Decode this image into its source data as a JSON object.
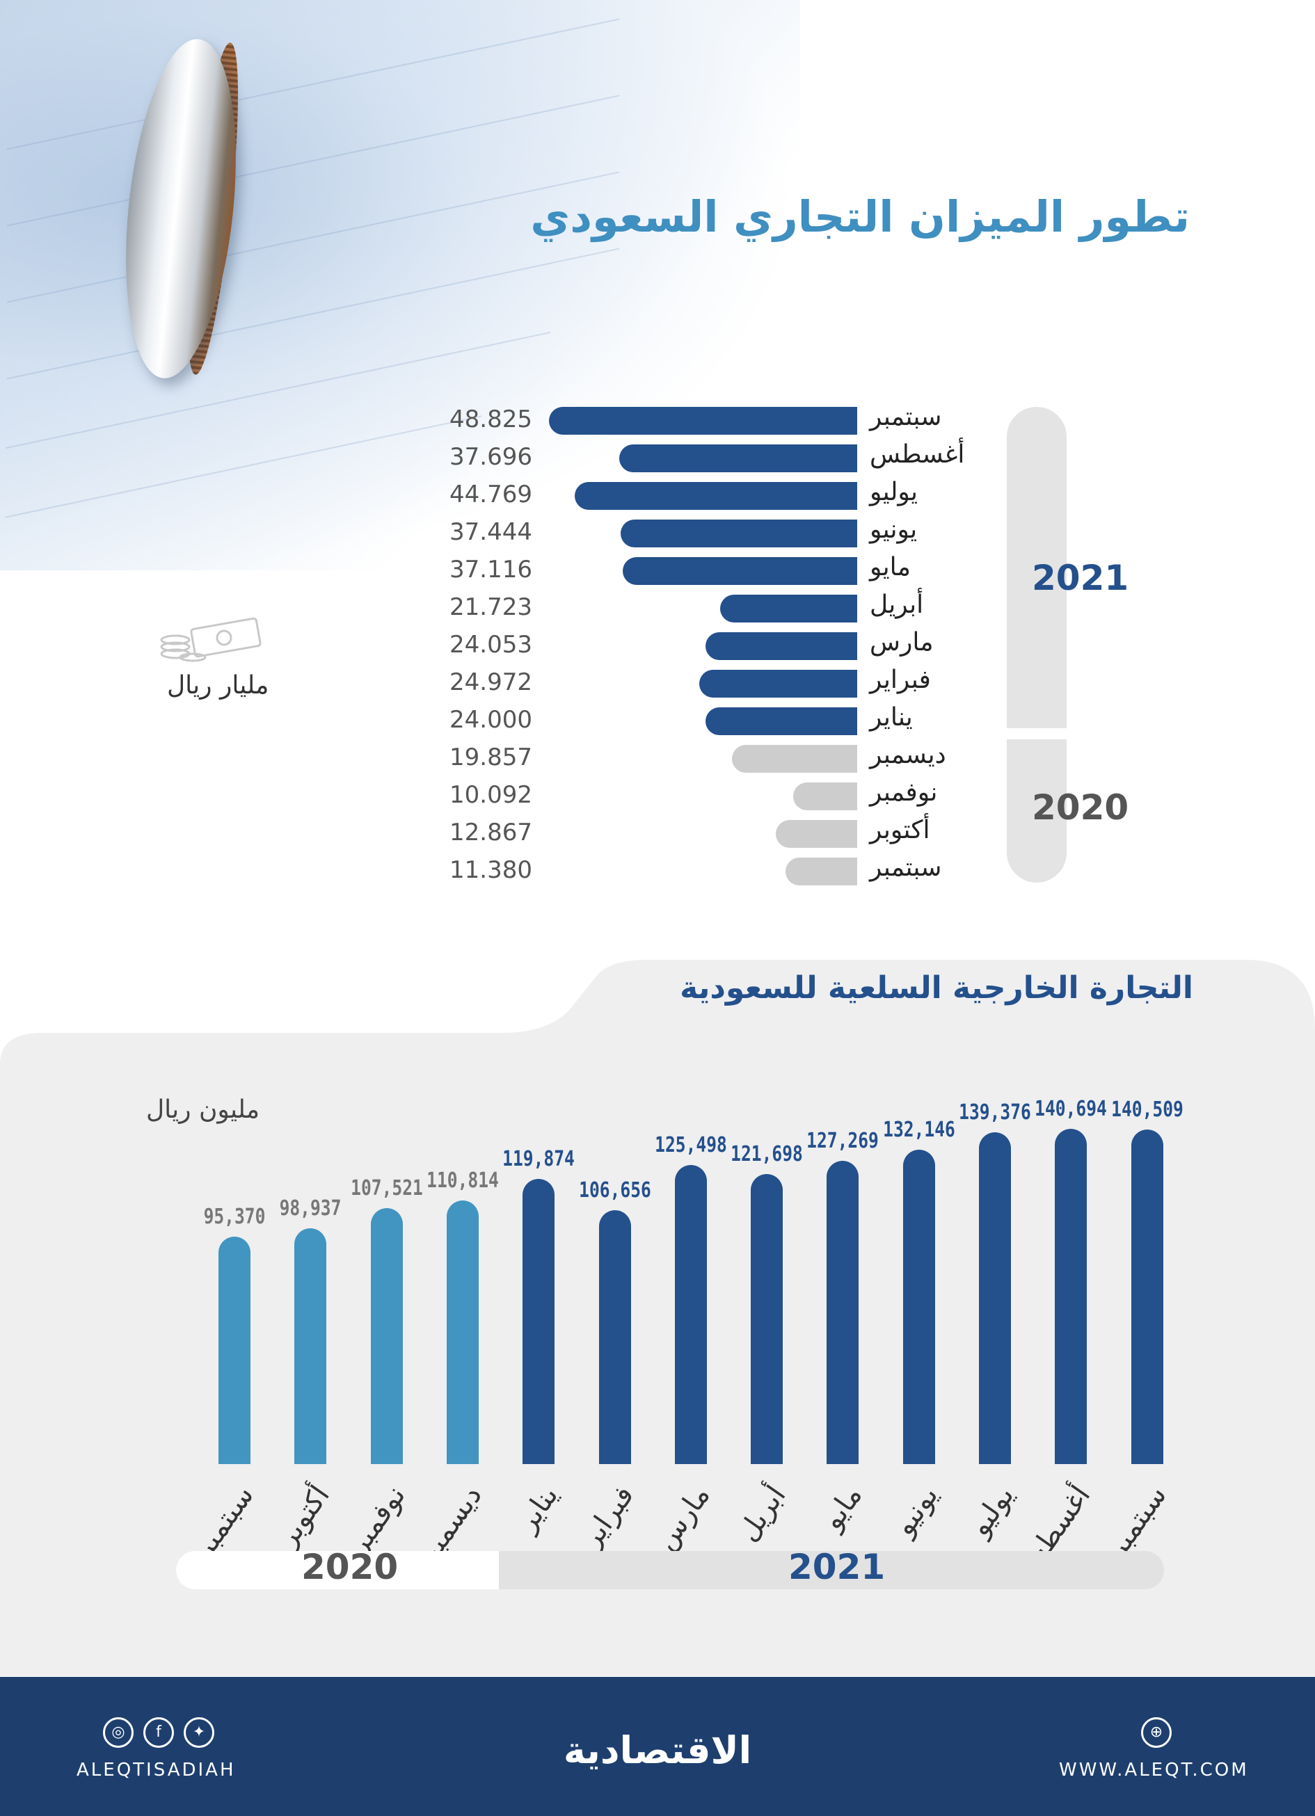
{
  "title": "تطور الميزان التجاري السعودي",
  "balance_unit": "مليار ريال",
  "year_2021": "2021",
  "year_2020": "2020",
  "trade_title": "التجارة الخارجية السلعية للسعودية",
  "trade_unit": "مليون ريال",
  "colors": {
    "y2021_bar": "#24508c",
    "y2020_bar_h": "#cdcdcd",
    "y2020_bar_v": "#4195c0",
    "title": "#3f8fc0",
    "footer": "#1e3f6e"
  },
  "footer": {
    "left_handle": "ALEQTISADIAH",
    "logo": "الاقتصادية",
    "website": "WWW.ALEQT.COM",
    "social_icons": [
      "instagram-icon",
      "facebook-icon",
      "twitter-icon"
    ],
    "right_icon": "dribbble-icon"
  },
  "chart_data": [
    {
      "type": "bar",
      "orientation": "horizontal",
      "title": "تطور الميزان التجاري السعودي",
      "unit": "مليار ريال",
      "categories": [
        "سبتمبر",
        "أغسطس",
        "يوليو",
        "يونيو",
        "مايو",
        "أبريل",
        "مارس",
        "فبراير",
        "يناير",
        "ديسمبر",
        "نوفمبر",
        "أكتوبر",
        "سبتمبر"
      ],
      "value_labels": [
        "48.825",
        "37.696",
        "44.769",
        "37.444",
        "37.116",
        "21.723",
        "24.053",
        "24.972",
        "24.000",
        "19.857",
        "10.092",
        "12.867",
        "11.380"
      ],
      "values": [
        48.825,
        37.696,
        44.769,
        37.444,
        37.116,
        21.723,
        24.053,
        24.972,
        24.0,
        19.857,
        10.092,
        12.867,
        11.38
      ],
      "years": [
        "2021",
        "2021",
        "2021",
        "2021",
        "2021",
        "2021",
        "2021",
        "2021",
        "2021",
        "2020",
        "2020",
        "2020",
        "2020"
      ]
    },
    {
      "type": "bar",
      "orientation": "vertical",
      "title": "التجارة الخارجية السلعية للسعودية",
      "unit": "مليون ريال",
      "categories": [
        "سبتمبر",
        "أكتوبر",
        "نوفمبر",
        "ديسمبر",
        "يناير",
        "فبراير",
        "مارس",
        "أبريل",
        "مايو",
        "يونيو",
        "يوليو",
        "أغسطس",
        "سبتمبر"
      ],
      "value_labels": [
        "95,370",
        "98,937",
        "107,521",
        "110,814",
        "119,874",
        "106,656",
        "125,498",
        "121,698",
        "127,269",
        "132,146",
        "139,376",
        "140,694",
        "140,509"
      ],
      "values": [
        95370,
        98937,
        107521,
        110814,
        119874,
        106656,
        125498,
        121698,
        127269,
        132146,
        139376,
        140694,
        140509
      ],
      "years": [
        "2020",
        "2020",
        "2020",
        "2020",
        "2021",
        "2021",
        "2021",
        "2021",
        "2021",
        "2021",
        "2021",
        "2021",
        "2021"
      ]
    }
  ]
}
